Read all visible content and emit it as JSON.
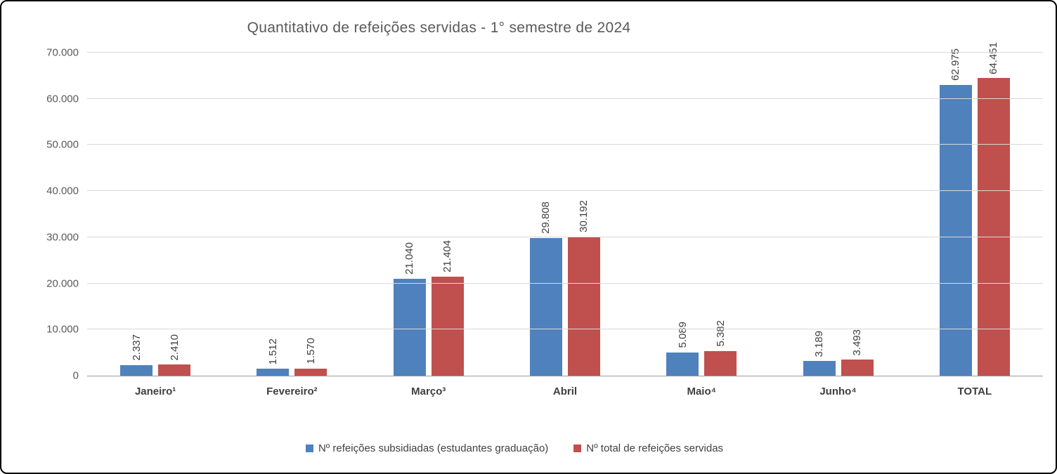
{
  "chart_data": {
    "type": "bar",
    "title": "Quantitativo de refeições servidas - 1° semestre de 2024",
    "categories": [
      "Janeiro¹",
      "Fevereiro²",
      "Março³",
      "Abril",
      "Maio⁴",
      "Junho⁴",
      "TOTAL"
    ],
    "series": [
      {
        "name": "Nº refeições subsidiadas (estudantes graduação)",
        "color": "#4f81bd",
        "values": [
          2337,
          1512,
          21040,
          29808,
          5089,
          3189,
          62975
        ],
        "labels": [
          "2.337",
          "1.512",
          "21.040",
          "29.808",
          "5.089",
          "3.189",
          "62.975"
        ]
      },
      {
        "name": "Nº total de refeições servidas",
        "color": "#c0504d",
        "values": [
          2410,
          1570,
          21404,
          30192,
          5382,
          3493,
          64451
        ],
        "labels": [
          "2.410",
          "1.570",
          "21.404",
          "30.192",
          "5.382",
          "3.493",
          "64.451"
        ]
      }
    ],
    "ylim": [
      0,
      70000
    ],
    "ytick_step": 10000,
    "ytick_labels": [
      "0",
      "10.000",
      "20.000",
      "30.000",
      "40.000",
      "50.000",
      "60.000",
      "70.000"
    ],
    "grid": true,
    "legend_position": "bottom"
  }
}
